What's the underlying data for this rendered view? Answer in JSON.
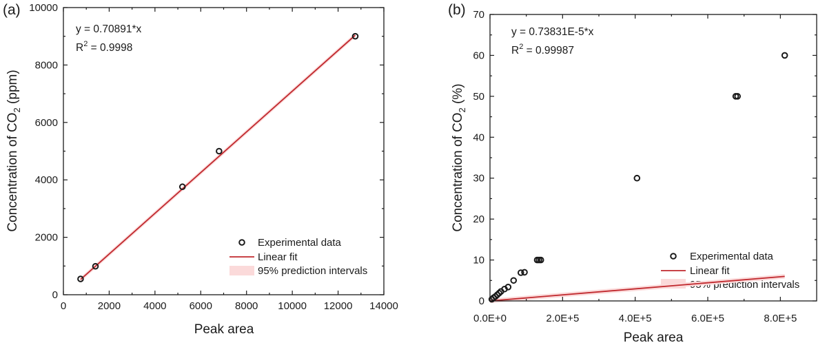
{
  "chart_data": [
    {
      "type": "scatter",
      "panel_label": "(a)",
      "equation": "y =  0.70891*x",
      "r2": "R2 = 0.9998",
      "r2_prefix": "R",
      "r2_sup": "2",
      "r2_value": " = 0.9998",
      "xlabel": "Peak area",
      "ylabel_prefix": "Concentration of CO",
      "ylabel_sub": "2",
      "ylabel_suffix": " (ppm)",
      "xlim": [
        0,
        14000
      ],
      "ylim": [
        0,
        10000
      ],
      "xticks": [
        0,
        2000,
        4000,
        6000,
        8000,
        10000,
        12000,
        14000
      ],
      "xtick_labels": [
        "0",
        "2000",
        "4000",
        "6000",
        "8000",
        "10000",
        "12000",
        "14000"
      ],
      "yticks": [
        0,
        2000,
        4000,
        6000,
        8000,
        10000
      ],
      "ytick_labels": [
        "0",
        "2000",
        "4000",
        "6000",
        "8000",
        "10000"
      ],
      "series": [
        {
          "name": "Experimental data",
          "kind": "scatter",
          "x": [
            750,
            1400,
            5200,
            6800,
            12750
          ],
          "y": [
            550,
            990,
            3760,
            5000,
            9000
          ]
        },
        {
          "name": "Linear fit",
          "kind": "line",
          "slope": 0.70891,
          "x_range": [
            750,
            12750
          ]
        },
        {
          "name": "95% prediction intervals",
          "kind": "band"
        }
      ],
      "legend_position": "bottom-right",
      "colors": {
        "fit": "#c0282d",
        "band": "#fbdada",
        "marker": "#1a1a1a"
      }
    },
    {
      "type": "scatter",
      "panel_label": "(b)",
      "equation": "y =  0.73831E-5*x",
      "r2": "R2 = 0.99987",
      "r2_prefix": "R",
      "r2_sup": "2",
      "r2_value": " = 0.99987",
      "xlabel": "Peak area",
      "ylabel_prefix": "Concentration of CO",
      "ylabel_sub": "2",
      "ylabel_suffix": " (%)",
      "xlim": [
        0,
        900000
      ],
      "ylim": [
        0,
        70
      ],
      "xticks": [
        0,
        200000,
        400000,
        600000,
        800000
      ],
      "xtick_labels": [
        "0.0E+0",
        "2.0E+5",
        "4.0E+5",
        "6.0E+5",
        "8.0E+5"
      ],
      "yticks": [
        0,
        10,
        20,
        30,
        40,
        50,
        60,
        70
      ],
      "ytick_labels": [
        "0",
        "10",
        "20",
        "30",
        "40",
        "50",
        "60",
        "70"
      ],
      "series": [
        {
          "name": "Experimental data",
          "kind": "scatter",
          "x": [
            5000,
            10000,
            15000,
            20000,
            25000,
            30000,
            40000,
            50000,
            65000,
            85000,
            95000,
            130000,
            135000,
            140000,
            405000,
            677000,
            682000,
            812000
          ],
          "y": [
            0.4,
            0.8,
            1.1,
            1.5,
            1.9,
            2.3,
            2.9,
            3.4,
            5.0,
            6.9,
            7.0,
            10.0,
            10.0,
            10.0,
            30.0,
            50.0,
            50.0,
            60.0
          ]
        },
        {
          "name": "Linear fit",
          "kind": "line",
          "slope": 7.3831e-06,
          "x_range": [
            0,
            812000
          ]
        },
        {
          "name": "95% prediction intervals",
          "kind": "band"
        }
      ],
      "legend_position": "bottom-right",
      "colors": {
        "fit": "#c0282d",
        "band": "#fbdada",
        "marker": "#1a1a1a"
      }
    }
  ]
}
